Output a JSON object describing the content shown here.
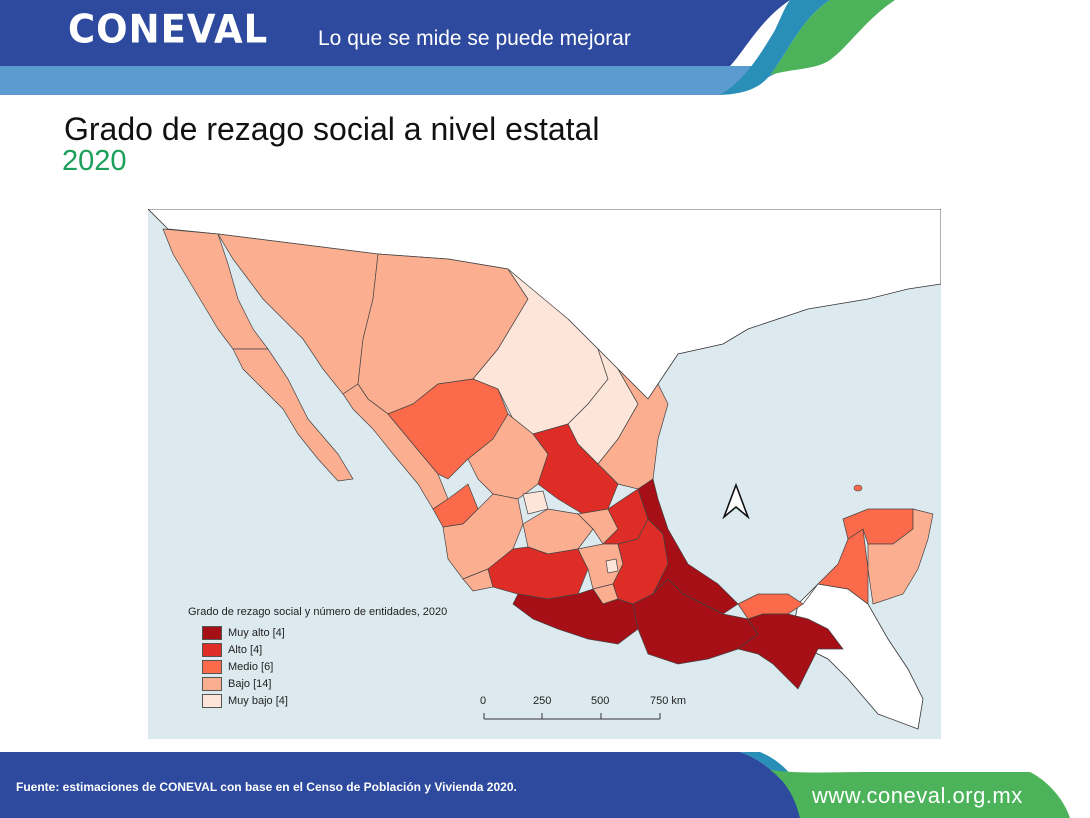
{
  "header": {
    "logo_text": "CONEVAL",
    "slogan": "Lo que se mide se puede mejorar"
  },
  "title": "Grado de rezago social a nivel estatal",
  "subtitle": "2020",
  "colors": {
    "muy_alto": "#a50f15",
    "alto": "#de2d26",
    "medio": "#fb6a4a",
    "bajo": "#fcae91",
    "muy_bajo": "#fee5d9",
    "sea": "#dceaf0",
    "header_blue": "#2e4a9e",
    "header_light_blue": "#5b9bd0",
    "accent_green": "#4cb35a"
  },
  "legend": {
    "title": "Grado de rezago social y número de entidades, 2020",
    "items": [
      {
        "label": "Muy alto [4]",
        "color": "#a50f15"
      },
      {
        "label": "Alto [4]",
        "color": "#de2d26"
      },
      {
        "label": "Medio [6]",
        "color": "#fb6a4a"
      },
      {
        "label": "Bajo [14]",
        "color": "#fcae91"
      },
      {
        "label": "Muy bajo [4]",
        "color": "#fee5d9"
      }
    ]
  },
  "scale": {
    "labels": [
      "0",
      "250",
      "500",
      "750 km"
    ]
  },
  "north_arrow_icon": "north-arrow-icon",
  "footer": {
    "source": "Fuente: estimaciones de CONEVAL con base en el Censo de Población y Vivienda 2020.",
    "website": "www.coneval.org.mx"
  }
}
